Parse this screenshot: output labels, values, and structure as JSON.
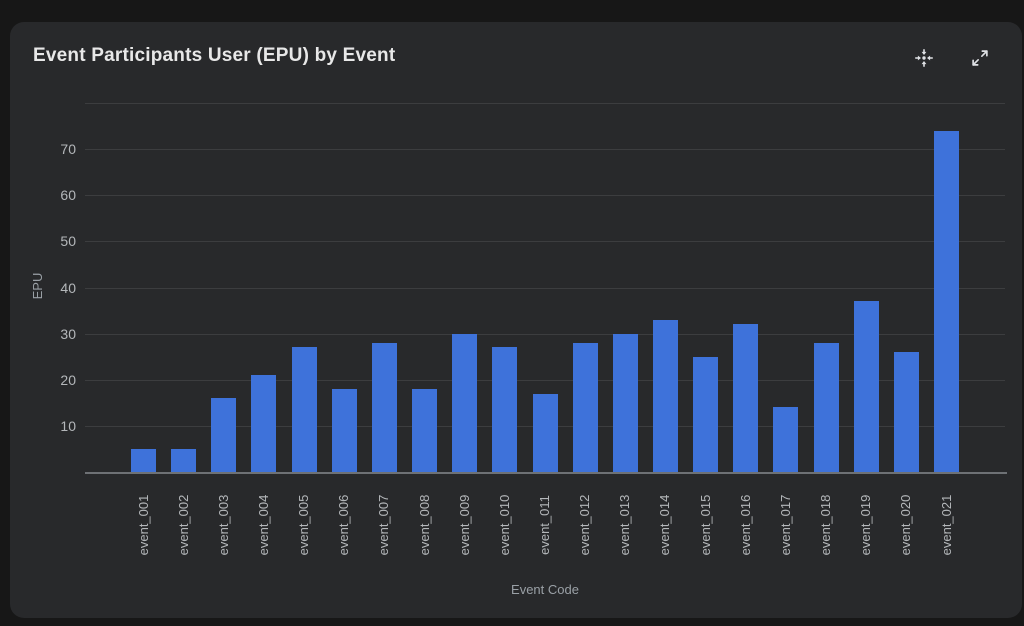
{
  "page": {
    "background": "#171717"
  },
  "card": {
    "background": "#28292b"
  },
  "header": {
    "title": "Event Participants User (EPU) by Event",
    "title_color": "#e8e8e8",
    "icon_color": "#dfe1e5"
  },
  "chart_data": {
    "type": "bar",
    "title": "Event Participants User (EPU) by Event",
    "xlabel": "Event Code",
    "ylabel": "EPU",
    "categories": [
      "event_001",
      "event_002",
      "event_003",
      "event_004",
      "event_005",
      "event_006",
      "event_007",
      "event_008",
      "event_009",
      "event_010",
      "event_011",
      "event_012",
      "event_013",
      "event_014",
      "event_015",
      "event_016",
      "event_017",
      "event_018",
      "event_019",
      "event_020",
      "event_021"
    ],
    "values": [
      5,
      5,
      16,
      21,
      27,
      18,
      28,
      18,
      30,
      27,
      17,
      28,
      30,
      33,
      25,
      32,
      14,
      28,
      37,
      26,
      74
    ],
    "ylim": [
      0,
      80
    ],
    "yticks": [
      10,
      20,
      30,
      40,
      50,
      60,
      70
    ],
    "gridlines": [
      10,
      20,
      30,
      40,
      50,
      60,
      70,
      80
    ],
    "grid": true,
    "legend": "none",
    "bar_color": "#3e72da",
    "tick_label_color": "#b4b7ba",
    "axis_title_color": "#9aa0a6",
    "gridline_color": "#3c3d3f",
    "baseline_color": "#6e7175"
  }
}
